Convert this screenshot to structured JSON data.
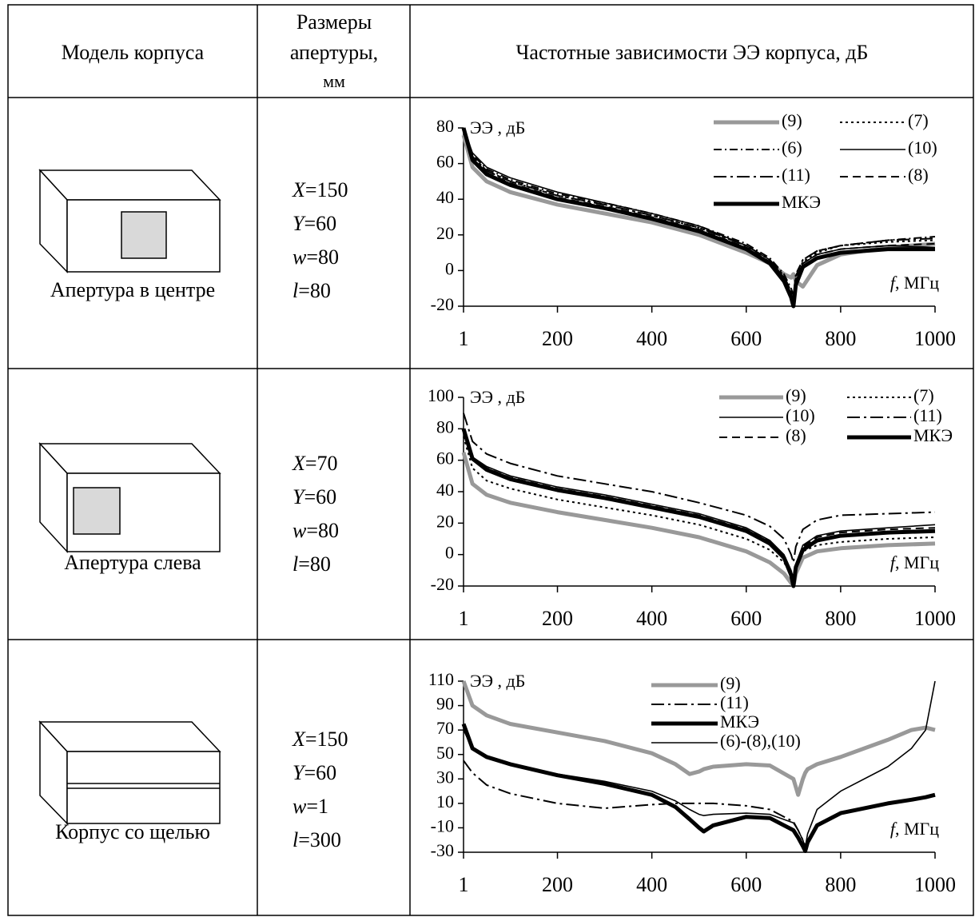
{
  "table": {
    "header": {
      "model": "Модель корпуса",
      "dims": [
        "Размеры",
        "апертуры,",
        "мм"
      ],
      "chart": "Частотные зависимости ЭЭ корпуса, дБ"
    },
    "rows": [
      {
        "model": "Апертура в центре",
        "dims": [
          [
            "X",
            "=150"
          ],
          [
            "Y",
            "=60"
          ],
          [
            "w",
            "=80"
          ],
          [
            "l",
            "=80"
          ]
        ],
        "chart": {
          "type": "line",
          "ylabel": "ЭЭ , дБ",
          "xlabel": [
            "f",
            ", МГц"
          ],
          "xlim": [
            1,
            1000
          ],
          "xticks": [
            1,
            200,
            400,
            600,
            800,
            1000
          ],
          "ylim": [
            -20,
            80
          ],
          "yticks": [
            -20,
            0,
            20,
            40,
            60,
            80
          ],
          "legend": {
            "position": "upper right",
            "columns": 2
          },
          "x": [
            1,
            20,
            50,
            100,
            200,
            300,
            400,
            500,
            600,
            650,
            680,
            695,
            700,
            705,
            720,
            750,
            800,
            900,
            1000
          ],
          "series": [
            {
              "name": "(9)",
              "color": "#999999",
              "style": "thick",
              "values": [
                76,
                58,
                50,
                44,
                37,
                32,
                27,
                20,
                10,
                4,
                -2,
                -4,
                -2,
                -6,
                -9,
                3,
                9,
                13,
                15
              ]
            },
            {
              "name": "(7)",
              "color": "#000000",
              "style": "dotted",
              "values": [
                80,
                64,
                56,
                50,
                42,
                37,
                31,
                24,
                14,
                6,
                -3,
                -12,
                -16,
                -4,
                5,
                10,
                14,
                16,
                17
              ]
            },
            {
              "name": "(6)",
              "color": "#000000",
              "style": "dash-dot",
              "values": [
                80,
                65,
                57,
                51,
                43,
                38,
                32,
                25,
                15,
                7,
                -2,
                -10,
                -14,
                -2,
                6,
                11,
                14,
                17,
                19
              ]
            },
            {
              "name": "(10)",
              "color": "#000000",
              "style": "thin",
              "values": [
                80,
                66,
                58,
                52,
                44,
                38,
                32,
                25,
                14,
                6,
                -4,
                -14,
                -19,
                -6,
                4,
                9,
                12,
                14,
                13
              ]
            },
            {
              "name": "(11)",
              "color": "#000000",
              "style": "long-dash-dot",
              "values": [
                80,
                64,
                56,
                50,
                42,
                37,
                31,
                24,
                14,
                6,
                -3,
                -12,
                -16,
                -3,
                6,
                11,
                14,
                17,
                18
              ]
            },
            {
              "name": "(8)",
              "color": "#000000",
              "style": "dashed",
              "values": [
                80,
                63,
                55,
                49,
                41,
                36,
                30,
                23,
                13,
                5,
                -4,
                -13,
                -17,
                -5,
                4,
                9,
                12,
                14,
                15
              ]
            },
            {
              "name": "МКЭ",
              "color": "#000000",
              "style": "thick",
              "values": [
                80,
                62,
                54,
                48,
                40,
                35,
                29,
                22,
                12,
                4,
                -6,
                -15,
                -20,
                -8,
                2,
                7,
                10,
                12,
                12
              ]
            }
          ]
        }
      },
      {
        "model": "Апертура слева",
        "dims": [
          [
            "X",
            "=70"
          ],
          [
            "Y",
            "=60"
          ],
          [
            "w",
            "=80"
          ],
          [
            "l",
            "=80"
          ]
        ],
        "chart": {
          "type": "line",
          "ylabel": "ЭЭ , дБ",
          "xlabel": [
            "f",
            ", МГц"
          ],
          "xlim": [
            1,
            1000
          ],
          "xticks": [
            1,
            200,
            400,
            600,
            800,
            1000
          ],
          "ylim": [
            -20,
            100
          ],
          "yticks": [
            -20,
            0,
            20,
            40,
            60,
            80,
            100
          ],
          "legend": {
            "position": "upper right",
            "columns": 2
          },
          "x": [
            1,
            20,
            50,
            100,
            200,
            300,
            400,
            500,
            600,
            650,
            680,
            695,
            700,
            705,
            720,
            750,
            800,
            900,
            1000
          ],
          "series": [
            {
              "name": "(9)",
              "color": "#999999",
              "style": "thick",
              "values": [
                65,
                45,
                38,
                33,
                27,
                22,
                17,
                11,
                2,
                -5,
                -12,
                -18,
                -20,
                -12,
                -2,
                2,
                4,
                6,
                7
              ]
            },
            {
              "name": "(7)",
              "color": "#000000",
              "style": "dotted",
              "values": [
                75,
                55,
                47,
                42,
                35,
                30,
                25,
                19,
                10,
                3,
                -5,
                -12,
                -16,
                -8,
                2,
                6,
                8,
                10,
                11
              ]
            },
            {
              "name": "(10)",
              "color": "#000000",
              "style": "thin",
              "values": [
                78,
                62,
                56,
                50,
                43,
                38,
                32,
                26,
                17,
                9,
                0,
                -10,
                -16,
                -6,
                6,
                12,
                15,
                17,
                19
              ]
            },
            {
              "name": "(11)",
              "color": "#000000",
              "style": "long-dash-dot",
              "values": [
                90,
                72,
                64,
                58,
                50,
                45,
                40,
                33,
                25,
                18,
                10,
                0,
                -5,
                5,
                16,
                22,
                25,
                26,
                27
              ]
            },
            {
              "name": "(8)",
              "color": "#000000",
              "style": "dashed",
              "values": [
                77,
                61,
                55,
                49,
                42,
                37,
                31,
                25,
                16,
                8,
                -1,
                -11,
                -17,
                -7,
                5,
                11,
                14,
                16,
                17
              ]
            },
            {
              "name": "МКЭ",
              "color": "#000000",
              "style": "thick",
              "values": [
                80,
                61,
                54,
                48,
                41,
                36,
                30,
                24,
                15,
                7,
                -2,
                -13,
                -20,
                -8,
                3,
                9,
                12,
                14,
                15
              ]
            }
          ]
        }
      },
      {
        "model": "Корпус со щелью",
        "dims": [
          [
            "X",
            "=150"
          ],
          [
            "Y",
            "=60"
          ],
          [
            "w",
            "=1"
          ],
          [
            "l",
            "=300"
          ]
        ],
        "chart": {
          "type": "line",
          "ylabel": "ЭЭ , дБ",
          "xlabel": [
            "f",
            ", МГц"
          ],
          "xlim": [
            1,
            1000
          ],
          "xticks": [
            1,
            200,
            400,
            600,
            800,
            1000
          ],
          "ylim": [
            -30,
            110
          ],
          "yticks": [
            -30,
            -10,
            10,
            30,
            50,
            70,
            90,
            110
          ],
          "legend": {
            "position": "upper right",
            "columns": 1
          },
          "x": [
            1,
            20,
            50,
            100,
            200,
            300,
            400,
            450,
            480,
            500,
            510,
            530,
            600,
            650,
            700,
            710,
            720,
            725,
            730,
            750,
            800,
            900,
            950,
            980,
            1000
          ],
          "series": [
            {
              "name": "(9)",
              "color": "#999999",
              "style": "thick",
              "values": [
                110,
                90,
                82,
                75,
                68,
                61,
                51,
                42,
                34,
                36,
                38,
                40,
                42,
                41,
                30,
                17,
                30,
                35,
                38,
                42,
                48,
                62,
                70,
                72,
                70
              ]
            },
            {
              "name": "(11)",
              "color": "#000000",
              "style": "long-dash-dot",
              "values": [
                45,
                35,
                25,
                18,
                10,
                6,
                9,
                10,
                10,
                10,
                10,
                10,
                8,
                5,
                -5,
                -12,
                -20,
                -25,
                -20,
                -8,
                3,
                10,
                13,
                15,
                16
              ]
            },
            {
              "name": "МКЭ",
              "color": "#000000",
              "style": "thick",
              "values": [
                75,
                55,
                48,
                42,
                33,
                26,
                17,
                7,
                -3,
                -10,
                -13,
                -8,
                -1,
                -2,
                -12,
                -18,
                -25,
                -29,
                -22,
                -8,
                2,
                10,
                13,
                15,
                17
              ]
            },
            {
              "name": "(6)-(8),(10)",
              "color": "#000000",
              "style": "thin",
              "values": [
                70,
                55,
                48,
                42,
                34,
                28,
                20,
                12,
                5,
                1,
                0,
                1,
                2,
                1,
                -6,
                -12,
                -20,
                -26,
                -15,
                5,
                20,
                40,
                55,
                70,
                110
              ]
            }
          ]
        }
      }
    ]
  }
}
